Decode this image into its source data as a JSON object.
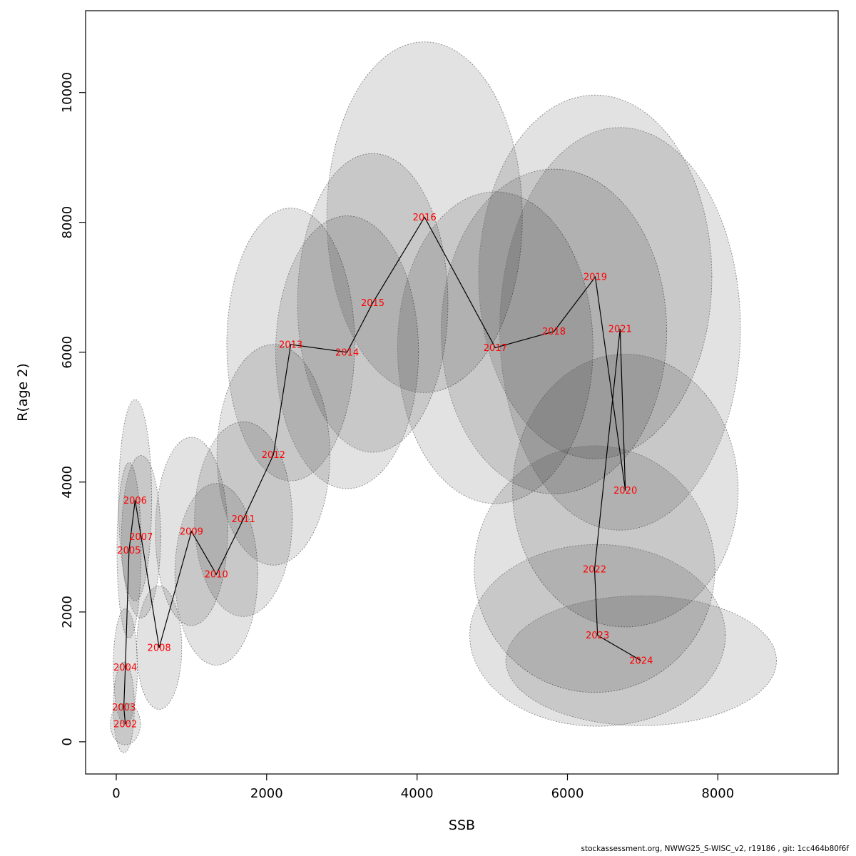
{
  "footer": {
    "text": "stockassessment.org, NWWG25_S-WISC_v2, r19186 , git: 1cc464b80f6f"
  },
  "chart_data": {
    "type": "scatter",
    "title": "",
    "xlabel": "SSB",
    "ylabel": "R(age 2)",
    "xlim": [
      -408,
      9600
    ],
    "ylim": [
      -495,
      11260
    ],
    "xticks": [
      0,
      2000,
      4000,
      6000,
      8000
    ],
    "yticks": [
      0,
      2000,
      4000,
      6000,
      8000,
      10000
    ],
    "grid": false,
    "legend": false,
    "label_color": "#FF0000",
    "line_color": "#000000",
    "ellipse_fill": "rgba(0,0,0,0.115)",
    "ellipse_stroke": "rgba(110,110,110,0.8)",
    "series": [
      {
        "name": "stock-recruitment-trajectory",
        "points": [
          {
            "year": "2002",
            "ssb": 120,
            "r": 275,
            "rx": 200,
            "ry": 320
          },
          {
            "year": "2003",
            "ssb": 100,
            "r": 530,
            "rx": 140,
            "ry": 700
          },
          {
            "year": "2004",
            "ssb": 120,
            "r": 1150,
            "rx": 160,
            "ry": 900
          },
          {
            "year": "2005",
            "ssb": 170,
            "r": 2950,
            "rx": 160,
            "ry": 1350
          },
          {
            "year": "2006",
            "ssb": 250,
            "r": 3720,
            "rx": 220,
            "ry": 1550
          },
          {
            "year": "2007",
            "ssb": 330,
            "r": 3160,
            "rx": 260,
            "ry": 1250
          },
          {
            "year": "2008",
            "ssb": 570,
            "r": 1450,
            "rx": 300,
            "ry": 950
          },
          {
            "year": "2009",
            "ssb": 1000,
            "r": 3240,
            "rx": 480,
            "ry": 1450
          },
          {
            "year": "2010",
            "ssb": 1330,
            "r": 2580,
            "rx": 550,
            "ry": 1400
          },
          {
            "year": "2011",
            "ssb": 1690,
            "r": 3430,
            "rx": 650,
            "ry": 1500
          },
          {
            "year": "2012",
            "ssb": 2090,
            "r": 4420,
            "rx": 750,
            "ry": 1700
          },
          {
            "year": "2013",
            "ssb": 2320,
            "r": 6120,
            "rx": 850,
            "ry": 2100
          },
          {
            "year": "2014",
            "ssb": 3070,
            "r": 6000,
            "rx": 950,
            "ry": 2100
          },
          {
            "year": "2015",
            "ssb": 3410,
            "r": 6760,
            "rx": 1000,
            "ry": 2300
          },
          {
            "year": "2016",
            "ssb": 4100,
            "r": 8080,
            "rx": 1300,
            "ry": 2700
          },
          {
            "year": "2017",
            "ssb": 5040,
            "r": 6070,
            "rx": 1300,
            "ry": 2400
          },
          {
            "year": "2018",
            "ssb": 5820,
            "r": 6320,
            "rx": 1500,
            "ry": 2500
          },
          {
            "year": "2019",
            "ssb": 6370,
            "r": 7160,
            "rx": 1550,
            "ry": 2800
          },
          {
            "year": "2020",
            "ssb": 6770,
            "r": 3870,
            "rx": 1500,
            "ry": 2100
          },
          {
            "year": "2021",
            "ssb": 6700,
            "r": 6360,
            "rx": 1600,
            "ry": 3100
          },
          {
            "year": "2022",
            "ssb": 6360,
            "r": 2660,
            "rx": 1600,
            "ry": 1900
          },
          {
            "year": "2023",
            "ssb": 6400,
            "r": 1640,
            "rx": 1700,
            "ry": 1400
          },
          {
            "year": "2024",
            "ssb": 6980,
            "r": 1250,
            "rx": 1800,
            "ry": 1000
          }
        ]
      }
    ]
  }
}
